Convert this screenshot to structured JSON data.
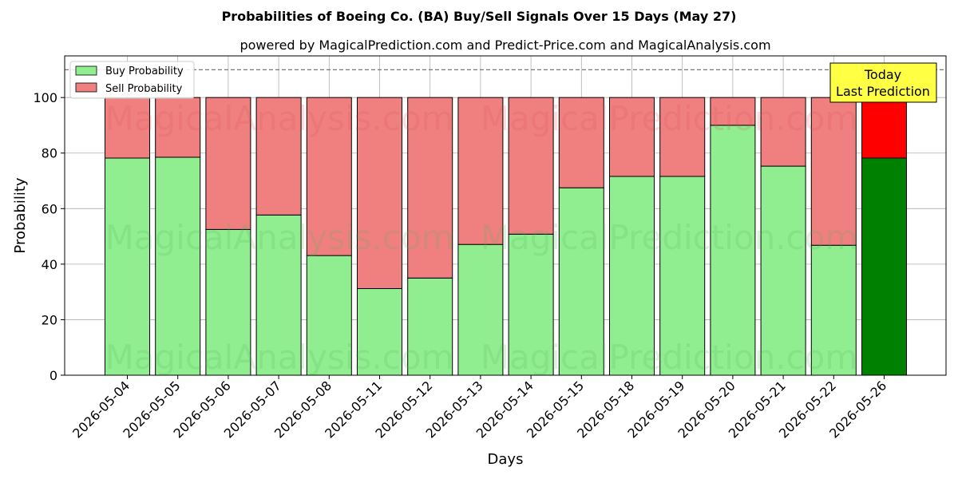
{
  "chart_data": {
    "type": "bar",
    "stacked": true,
    "title": "Probabilities of Boeing Co. (BA) Buy/Sell Signals Over 15 Days (May 27)",
    "subtitle": "powered by MagicalPrediction.com and Predict-Price.com and MagicalAnalysis.com",
    "xlabel": "Days",
    "ylabel": "Probability",
    "ylim": [
      0,
      115
    ],
    "yticks": [
      0,
      20,
      40,
      60,
      80,
      100
    ],
    "grid": true,
    "legend_position": "top-left",
    "reference_line": 110,
    "categories": [
      "2026-05-04",
      "2026-05-05",
      "2026-05-06",
      "2026-05-07",
      "2026-05-08",
      "2026-05-11",
      "2026-05-12",
      "2026-05-13",
      "2026-05-14",
      "2026-05-15",
      "2026-05-18",
      "2026-05-19",
      "2026-05-20",
      "2026-05-21",
      "2026-05-22",
      "2026-05-26"
    ],
    "series": [
      {
        "name": "Buy Probability",
        "color": "#90ee90",
        "highlight_color": "#008000",
        "values": [
          78.2,
          78.5,
          52.5,
          57.7,
          43.1,
          31.2,
          35.0,
          47.1,
          50.8,
          67.5,
          71.6,
          71.6,
          90.0,
          75.3,
          46.8,
          78.2
        ]
      },
      {
        "name": "Sell Probability",
        "color": "#f08080",
        "highlight_color": "#ff0000",
        "values": [
          21.8,
          21.5,
          47.5,
          42.3,
          56.9,
          68.8,
          65.0,
          52.9,
          49.2,
          32.5,
          28.4,
          28.4,
          10.0,
          24.7,
          53.2,
          21.8
        ]
      }
    ],
    "highlight_index": 15,
    "annotation": {
      "line1": "Today",
      "line2": "Last Prediction",
      "bg": "#ffff44"
    },
    "watermarks": [
      "MagicalAnalysis.com",
      "MagicalPrediction.com"
    ]
  }
}
